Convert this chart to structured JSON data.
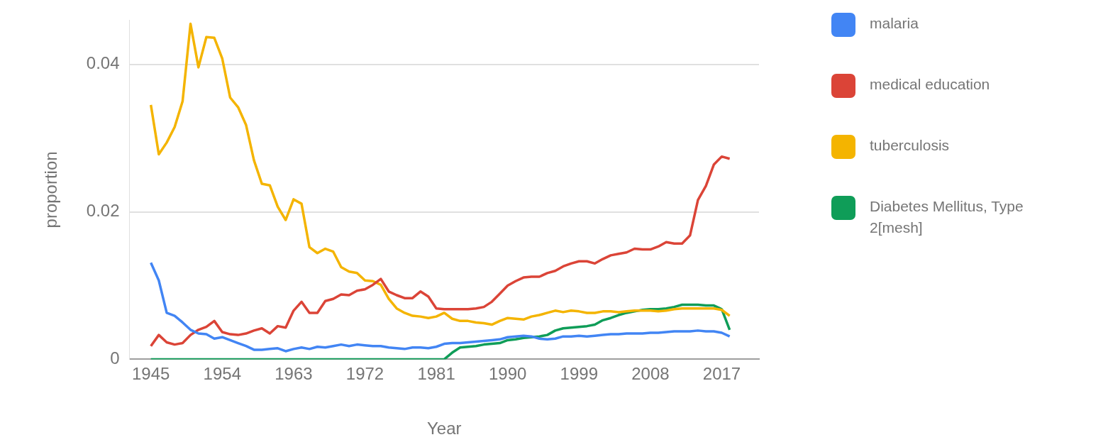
{
  "chart_data": {
    "type": "line",
    "xlabel": "Year",
    "ylabel": "proportion",
    "x": [
      1945,
      1946,
      1947,
      1948,
      1949,
      1950,
      1951,
      1952,
      1953,
      1954,
      1955,
      1956,
      1957,
      1958,
      1959,
      1960,
      1961,
      1962,
      1963,
      1964,
      1965,
      1966,
      1967,
      1968,
      1969,
      1970,
      1971,
      1972,
      1973,
      1974,
      1975,
      1976,
      1977,
      1978,
      1979,
      1980,
      1981,
      1982,
      1983,
      1984,
      1985,
      1986,
      1987,
      1988,
      1989,
      1990,
      1991,
      1992,
      1993,
      1994,
      1995,
      1996,
      1997,
      1998,
      1999,
      2000,
      2001,
      2002,
      2003,
      2004,
      2005,
      2006,
      2007,
      2008,
      2009,
      2010,
      2011,
      2012,
      2013,
      2014,
      2015,
      2016,
      2017,
      2018
    ],
    "xlim": [
      1942.3,
      2021.7
    ],
    "xticks": [
      1945,
      1954,
      1963,
      1972,
      1981,
      1990,
      1999,
      2008,
      2017
    ],
    "ylim": [
      0,
      0.046
    ],
    "yticks": [
      0,
      0.02,
      0.04
    ],
    "grid": "y",
    "legend": "right",
    "marker": "none",
    "line_style": "solid",
    "series": [
      {
        "name": "malaria",
        "color": "#4285f4",
        "values": [
          0.0131,
          0.0107,
          0.0063,
          0.0059,
          0.005,
          0.004,
          0.0035,
          0.0034,
          0.0028,
          0.003,
          0.0026,
          0.0022,
          0.0018,
          0.0013,
          0.0013,
          0.0014,
          0.0015,
          0.0011,
          0.0014,
          0.0016,
          0.0014,
          0.0017,
          0.0016,
          0.0018,
          0.002,
          0.0018,
          0.002,
          0.0019,
          0.0018,
          0.0018,
          0.0016,
          0.0015,
          0.0014,
          0.0016,
          0.0016,
          0.0015,
          0.0017,
          0.0021,
          0.0022,
          0.0022,
          0.0023,
          0.0024,
          0.0025,
          0.0026,
          0.0027,
          0.003,
          0.0031,
          0.0032,
          0.0031,
          0.0028,
          0.0027,
          0.0028,
          0.0031,
          0.0031,
          0.0032,
          0.0031,
          0.0032,
          0.0033,
          0.0034,
          0.0034,
          0.0035,
          0.0035,
          0.0035,
          0.0036,
          0.0036,
          0.0037,
          0.0038,
          0.0038,
          0.0038,
          0.0039,
          0.0038,
          0.0038,
          0.0036,
          0.0031
        ]
      },
      {
        "name": "medical education",
        "color": "#db4437",
        "values": [
          0.0018,
          0.0033,
          0.0023,
          0.002,
          0.0022,
          0.0033,
          0.004,
          0.0044,
          0.0052,
          0.0037,
          0.0034,
          0.0033,
          0.0035,
          0.0039,
          0.0042,
          0.0035,
          0.0045,
          0.0043,
          0.0066,
          0.0078,
          0.0063,
          0.0063,
          0.0079,
          0.0082,
          0.0088,
          0.0087,
          0.0093,
          0.0095,
          0.0101,
          0.0109,
          0.0092,
          0.0087,
          0.0083,
          0.0083,
          0.0092,
          0.0085,
          0.0069,
          0.0068,
          0.0068,
          0.0068,
          0.0068,
          0.0069,
          0.0071,
          0.0078,
          0.0089,
          0.01,
          0.0106,
          0.0111,
          0.0112,
          0.0112,
          0.0117,
          0.012,
          0.0126,
          0.013,
          0.0133,
          0.0133,
          0.013,
          0.0136,
          0.0141,
          0.0143,
          0.0145,
          0.015,
          0.0149,
          0.0149,
          0.0153,
          0.0159,
          0.0157,
          0.0157,
          0.0168,
          0.0216,
          0.0235,
          0.0264,
          0.0275,
          0.0272
        ]
      },
      {
        "name": "tuberculosis",
        "color": "#f4b400",
        "values": [
          0.0345,
          0.0278,
          0.0294,
          0.0315,
          0.035,
          0.0455,
          0.0396,
          0.0437,
          0.0436,
          0.0408,
          0.0355,
          0.0342,
          0.0318,
          0.027,
          0.0238,
          0.0236,
          0.0207,
          0.0189,
          0.0217,
          0.0211,
          0.0152,
          0.0144,
          0.015,
          0.0146,
          0.0125,
          0.0119,
          0.0117,
          0.0107,
          0.0106,
          0.0101,
          0.0082,
          0.0069,
          0.0063,
          0.0059,
          0.0058,
          0.0056,
          0.0058,
          0.0063,
          0.0055,
          0.0052,
          0.0052,
          0.005,
          0.0049,
          0.0047,
          0.0052,
          0.0056,
          0.0055,
          0.0054,
          0.0058,
          0.006,
          0.0063,
          0.0066,
          0.0064,
          0.0066,
          0.0065,
          0.0063,
          0.0063,
          0.0065,
          0.0065,
          0.0064,
          0.0065,
          0.0066,
          0.0066,
          0.0066,
          0.0065,
          0.0066,
          0.0068,
          0.0069,
          0.0069,
          0.0069,
          0.0069,
          0.0069,
          0.0067,
          0.0059
        ]
      },
      {
        "name": "Diabetes Mellitus, Type 2[mesh]",
        "color": "#0f9d58",
        "values": [
          0,
          0,
          0,
          0,
          0,
          0,
          0,
          0,
          0,
          0,
          0,
          0,
          0,
          0,
          0,
          0,
          0,
          0,
          0,
          0,
          0,
          0,
          0,
          0,
          0,
          0,
          0,
          0,
          0,
          0,
          0,
          0,
          0,
          0,
          0,
          0,
          0,
          0,
          0.0009,
          0.0016,
          0.0017,
          0.0018,
          0.002,
          0.0021,
          0.0022,
          0.0026,
          0.0027,
          0.0029,
          0.003,
          0.0031,
          0.0033,
          0.0039,
          0.0042,
          0.0043,
          0.0044,
          0.0045,
          0.0047,
          0.0053,
          0.0056,
          0.006,
          0.0063,
          0.0065,
          0.0067,
          0.0068,
          0.0068,
          0.0069,
          0.0071,
          0.0074,
          0.0074,
          0.0074,
          0.0073,
          0.0073,
          0.0068,
          0.004
        ]
      }
    ]
  }
}
